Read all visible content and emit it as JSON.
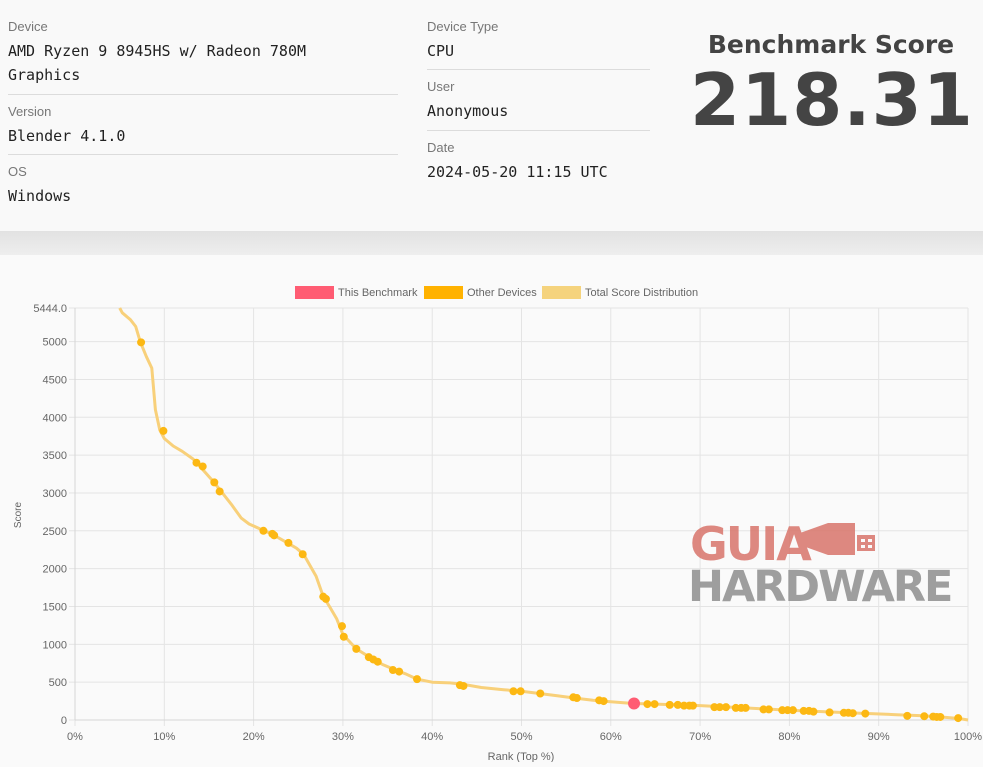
{
  "device": {
    "label": "Device",
    "value_line1": "AMD Ryzen 9 8945HS w/ Radeon 780M",
    "value_line2": "Graphics"
  },
  "version": {
    "label": "Version",
    "value": "Blender 4.1.0"
  },
  "os": {
    "label": "OS",
    "value": "Windows"
  },
  "device_type": {
    "label": "Device Type",
    "value": "CPU"
  },
  "user": {
    "label": "User",
    "value": "Anonymous"
  },
  "date": {
    "label": "Date",
    "value": "2024-05-20 11:15 UTC"
  },
  "benchmark": {
    "title": "Benchmark Score",
    "score": "218.31"
  },
  "watermark": {
    "line1": "GUIA",
    "line2": "HARDWARE"
  },
  "chart_data": {
    "type": "scatter",
    "xlabel": "Rank (Top %)",
    "ylabel": "Score",
    "xlim": [
      0,
      100
    ],
    "ylim": [
      0,
      5444.0
    ],
    "x_ticks": [
      "0%",
      "10%",
      "20%",
      "30%",
      "40%",
      "50%",
      "60%",
      "70%",
      "80%",
      "90%",
      "100%"
    ],
    "y_ticks": [
      "0",
      "500",
      "1000",
      "1500",
      "2000",
      "2500",
      "3000",
      "3500",
      "4000",
      "4500",
      "5000",
      "5444.0"
    ],
    "y_tick_values": [
      0,
      500,
      1000,
      1500,
      2000,
      2500,
      3000,
      3500,
      4000,
      4500,
      5000,
      5444
    ],
    "grid": true,
    "legend_position": "top",
    "legend": [
      {
        "label": "This Benchmark",
        "color": "#ff5c73"
      },
      {
        "label": "Other Devices",
        "color": "#ffb200"
      },
      {
        "label": "Total Score Distribution",
        "color": "#f5d37d"
      }
    ],
    "colors": {
      "this": "#ff5c73",
      "other": "#fcb813",
      "distribution": "#f8d07a"
    },
    "distribution": [
      [
        5,
        5444
      ],
      [
        5.3,
        5380
      ],
      [
        6.2,
        5290
      ],
      [
        6.8,
        5200
      ],
      [
        7.3,
        5000
      ],
      [
        8,
        4800
      ],
      [
        8.6,
        4650
      ],
      [
        9,
        4100
      ],
      [
        9.5,
        3830
      ],
      [
        10,
        3720
      ],
      [
        11,
        3620
      ],
      [
        12,
        3550
      ],
      [
        13.2,
        3450
      ],
      [
        14,
        3350
      ],
      [
        15.5,
        3150
      ],
      [
        16.3,
        3030
      ],
      [
        17.5,
        2850
      ],
      [
        18.6,
        2670
      ],
      [
        19.5,
        2590
      ],
      [
        21,
        2510
      ],
      [
        22,
        2460
      ],
      [
        23.8,
        2340
      ],
      [
        24.8,
        2270
      ],
      [
        25.6,
        2190
      ],
      [
        27,
        1900
      ],
      [
        27.8,
        1630
      ],
      [
        28.5,
        1500
      ],
      [
        29.3,
        1340
      ],
      [
        30,
        1130
      ],
      [
        31.5,
        940
      ],
      [
        33,
        830
      ],
      [
        34.5,
        730
      ],
      [
        35.7,
        670
      ],
      [
        37,
        610
      ],
      [
        38.3,
        540
      ],
      [
        40,
        500
      ],
      [
        42,
        490
      ],
      [
        43.5,
        470
      ],
      [
        45.5,
        430
      ],
      [
        48,
        400
      ],
      [
        50,
        380
      ],
      [
        52,
        350
      ],
      [
        54,
        320
      ],
      [
        56,
        290
      ],
      [
        58,
        260
      ],
      [
        60,
        240
      ],
      [
        62.5,
        218
      ],
      [
        65,
        210
      ],
      [
        70,
        190
      ],
      [
        75,
        160
      ],
      [
        80,
        130
      ],
      [
        85,
        105
      ],
      [
        88,
        90
      ],
      [
        92,
        70
      ],
      [
        95,
        55
      ],
      [
        97,
        40
      ],
      [
        99,
        20
      ],
      [
        100,
        0
      ]
    ],
    "other_devices": [
      [
        7.4,
        4990
      ],
      [
        9.9,
        3820
      ],
      [
        13.6,
        3400
      ],
      [
        14.3,
        3350
      ],
      [
        15.6,
        3140
      ],
      [
        16.2,
        3020
      ],
      [
        21.1,
        2500
      ],
      [
        22.1,
        2460
      ],
      [
        22.3,
        2440
      ],
      [
        23.9,
        2340
      ],
      [
        25.5,
        2190
      ],
      [
        27.8,
        1630
      ],
      [
        28.1,
        1600
      ],
      [
        29.9,
        1240
      ],
      [
        30.1,
        1100
      ],
      [
        31.5,
        940
      ],
      [
        32.9,
        830
      ],
      [
        33.4,
        800
      ],
      [
        33.9,
        770
      ],
      [
        35.6,
        660
      ],
      [
        36.3,
        640
      ],
      [
        38.3,
        540
      ],
      [
        43.1,
        460
      ],
      [
        43.5,
        450
      ],
      [
        49.1,
        380
      ],
      [
        49.9,
        380
      ],
      [
        52.1,
        350
      ],
      [
        55.8,
        300
      ],
      [
        56.2,
        290
      ],
      [
        58.7,
        260
      ],
      [
        59.2,
        250
      ],
      [
        64.1,
        210
      ],
      [
        64.9,
        210
      ],
      [
        66.6,
        200
      ],
      [
        67.5,
        200
      ],
      [
        68.2,
        190
      ],
      [
        68.8,
        190
      ],
      [
        69.2,
        190
      ],
      [
        71.6,
        170
      ],
      [
        72.2,
        170
      ],
      [
        72.9,
        170
      ],
      [
        74,
        160
      ],
      [
        74.6,
        160
      ],
      [
        75.1,
        160
      ],
      [
        77.1,
        140
      ],
      [
        77.7,
        140
      ],
      [
        79.2,
        130
      ],
      [
        79.8,
        130
      ],
      [
        80.4,
        130
      ],
      [
        81.6,
        120
      ],
      [
        82.2,
        120
      ],
      [
        82.7,
        110
      ],
      [
        84.5,
        100
      ],
      [
        86.1,
        95
      ],
      [
        86.6,
        95
      ],
      [
        87.1,
        90
      ],
      [
        88.5,
        85
      ],
      [
        93.2,
        55
      ],
      [
        95.1,
        50
      ],
      [
        96.1,
        45
      ],
      [
        96.5,
        40
      ],
      [
        96.9,
        40
      ],
      [
        98.9,
        25
      ]
    ],
    "this_benchmark": [
      62.6,
      218.31
    ]
  }
}
